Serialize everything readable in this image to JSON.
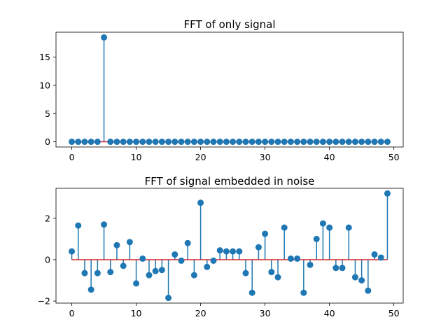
{
  "chart_data": [
    {
      "type": "stem",
      "title": "FFT of only signal",
      "xlabel": "",
      "ylabel": "",
      "x": [
        0,
        1,
        2,
        3,
        4,
        5,
        6,
        7,
        8,
        9,
        10,
        11,
        12,
        13,
        14,
        15,
        16,
        17,
        18,
        19,
        20,
        21,
        22,
        23,
        24,
        25,
        26,
        27,
        28,
        29,
        30,
        31,
        32,
        33,
        34,
        35,
        36,
        37,
        38,
        39,
        40,
        41,
        42,
        43,
        44,
        45,
        46,
        47,
        48,
        49
      ],
      "values": [
        0,
        0,
        0,
        0,
        0,
        18.5,
        0,
        0,
        0,
        0,
        0,
        0,
        0,
        0,
        0,
        0,
        0,
        0,
        0,
        0,
        0,
        0,
        0,
        0,
        0,
        0,
        0,
        0,
        0,
        0,
        0,
        0,
        0,
        0,
        0,
        0,
        0,
        0,
        0,
        0,
        0,
        0,
        0,
        0,
        0,
        0,
        0,
        0,
        0,
        0
      ],
      "xlim": [
        -2.45,
        51.45
      ],
      "ylim": [
        -0.925,
        19.425
      ],
      "xticks": [
        0,
        10,
        20,
        30,
        40,
        50
      ],
      "yticks": [
        0,
        5,
        10,
        15
      ],
      "xtick_labels": [
        "0",
        "10",
        "20",
        "30",
        "40",
        "50"
      ],
      "ytick_labels": [
        "0",
        "5",
        "10",
        "15"
      ],
      "baseline": 0,
      "grid": false,
      "colors": {
        "stem": "#1f77b4",
        "marker": "#1f77b4",
        "baseline": "#d62728"
      }
    },
    {
      "type": "stem",
      "title": "FFT of signal embedded in noise",
      "xlabel": "",
      "ylabel": "",
      "x": [
        0,
        1,
        2,
        3,
        4,
        5,
        6,
        7,
        8,
        9,
        10,
        11,
        12,
        13,
        14,
        15,
        16,
        17,
        18,
        19,
        20,
        21,
        22,
        23,
        24,
        25,
        26,
        27,
        28,
        29,
        30,
        31,
        32,
        33,
        34,
        35,
        36,
        37,
        38,
        39,
        40,
        41,
        42,
        43,
        44,
        45,
        46,
        47,
        48,
        49
      ],
      "values": [
        0.4,
        1.65,
        -0.65,
        -1.45,
        -0.65,
        1.7,
        -0.6,
        0.7,
        -0.3,
        0.85,
        -1.15,
        0.05,
        -0.75,
        -0.55,
        -0.5,
        -1.85,
        0.25,
        -0.05,
        0.8,
        -0.75,
        2.75,
        -0.35,
        -0.05,
        0.45,
        0.4,
        0.4,
        0.4,
        -0.65,
        -1.6,
        0.6,
        1.25,
        -0.6,
        -0.85,
        1.55,
        0.05,
        0.05,
        -1.6,
        -0.25,
        1.0,
        1.75,
        1.55,
        -0.4,
        -0.4,
        1.55,
        -0.85,
        -1.0,
        -1.5,
        0.25,
        0.1,
        3.2
      ],
      "xlim": [
        -2.45,
        51.45
      ],
      "ylim": [
        -2.1,
        3.45
      ],
      "xticks": [
        0,
        10,
        20,
        30,
        40,
        50
      ],
      "yticks": [
        -2,
        0,
        2
      ],
      "xtick_labels": [
        "0",
        "10",
        "20",
        "30",
        "40",
        "50"
      ],
      "ytick_labels": [
        "−2",
        "0",
        "2"
      ],
      "baseline": 0,
      "grid": false,
      "colors": {
        "stem": "#1f77b4",
        "marker": "#1f77b4",
        "baseline": "#d62728"
      }
    }
  ]
}
